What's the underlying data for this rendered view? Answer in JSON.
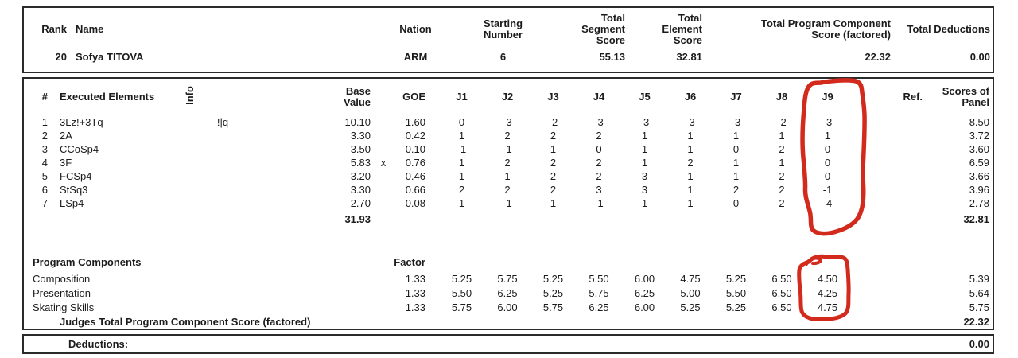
{
  "header": {
    "columns": {
      "rank": "Rank",
      "name": "Name",
      "nation": "Nation",
      "starting_number": "Starting\nNumber",
      "total_segment_score": "Total\nSegment\nScore",
      "total_element_score": "Total\nElement\nScore",
      "total_pcs_factored": "Total Program Component\nScore (factored)",
      "total_deductions": "Total Deductions"
    },
    "segment_marker": "▪",
    "row": {
      "rank": "20",
      "name": "Sofya TITOVA",
      "nation": "ARM",
      "starting_number": "6",
      "total_segment_score": "55.13",
      "total_element_score": "32.81",
      "total_pcs_factored": "22.32",
      "total_deductions": "0.00"
    }
  },
  "elements_table": {
    "columns": {
      "num": "#",
      "name": "Executed Elements",
      "info": "Info",
      "base": "Base\nValue",
      "goe": "GOE",
      "ref": "Ref.",
      "panel": "Scores of\nPanel"
    },
    "judge_headers": [
      "J1",
      "J2",
      "J3",
      "J4",
      "J5",
      "J6",
      "J7",
      "J8",
      "J9"
    ],
    "rows": [
      {
        "num": "1",
        "name": "3Lz!+3Tq",
        "info": "!|q",
        "base": "10.10",
        "x": "",
        "goe": "-1.60",
        "j": [
          "0",
          "-3",
          "-2",
          "-3",
          "-3",
          "-3",
          "-3",
          "-2",
          "-3"
        ],
        "panel": "8.50"
      },
      {
        "num": "2",
        "name": "2A",
        "info": "",
        "base": "3.30",
        "x": "",
        "goe": "0.42",
        "j": [
          "1",
          "2",
          "2",
          "2",
          "1",
          "1",
          "1",
          "1",
          "1"
        ],
        "panel": "3.72"
      },
      {
        "num": "3",
        "name": "CCoSp4",
        "info": "",
        "base": "3.50",
        "x": "",
        "goe": "0.10",
        "j": [
          "-1",
          "-1",
          "1",
          "0",
          "1",
          "1",
          "0",
          "2",
          "0"
        ],
        "panel": "3.60"
      },
      {
        "num": "4",
        "name": "3F",
        "info": "",
        "base": "5.83",
        "x": "x",
        "goe": "0.76",
        "j": [
          "1",
          "2",
          "2",
          "2",
          "1",
          "2",
          "1",
          "1",
          "0"
        ],
        "panel": "6.59"
      },
      {
        "num": "5",
        "name": "FCSp4",
        "info": "",
        "base": "3.20",
        "x": "",
        "goe": "0.46",
        "j": [
          "1",
          "1",
          "2",
          "2",
          "3",
          "1",
          "1",
          "2",
          "0"
        ],
        "panel": "3.66"
      },
      {
        "num": "6",
        "name": "StSq3",
        "info": "",
        "base": "3.30",
        "x": "",
        "goe": "0.66",
        "j": [
          "2",
          "2",
          "2",
          "3",
          "3",
          "1",
          "2",
          "2",
          "-1"
        ],
        "panel": "3.96"
      },
      {
        "num": "7",
        "name": "LSp4",
        "info": "",
        "base": "2.70",
        "x": "",
        "goe": "0.08",
        "j": [
          "1",
          "-1",
          "1",
          "-1",
          "1",
          "1",
          "0",
          "2",
          "-4"
        ],
        "panel": "2.78"
      }
    ],
    "totals": {
      "base": "31.93",
      "panel": "32.81"
    }
  },
  "components_table": {
    "section_label": "Program Components",
    "factor_label": "Factor",
    "rows": [
      {
        "name": "Composition",
        "factor": "1.33",
        "j": [
          "5.25",
          "5.75",
          "5.25",
          "5.50",
          "6.00",
          "4.75",
          "5.25",
          "6.50",
          "4.50"
        ],
        "panel": "5.39"
      },
      {
        "name": "Presentation",
        "factor": "1.33",
        "j": [
          "5.50",
          "6.25",
          "5.25",
          "5.75",
          "6.25",
          "5.00",
          "5.50",
          "6.50",
          "4.25"
        ],
        "panel": "5.64"
      },
      {
        "name": "Skating Skills",
        "factor": "1.33",
        "j": [
          "5.75",
          "6.00",
          "5.75",
          "6.25",
          "6.00",
          "5.25",
          "5.25",
          "6.50",
          "4.75"
        ],
        "panel": "5.75"
      }
    ],
    "total_label": "Judges Total Program Component Score (factored)",
    "total_value": "22.32"
  },
  "deductions": {
    "label": "Deductions:",
    "value": "0.00"
  },
  "annotations": {
    "highlight_color": "#d32a1e",
    "circled_target": "J9 column"
  }
}
